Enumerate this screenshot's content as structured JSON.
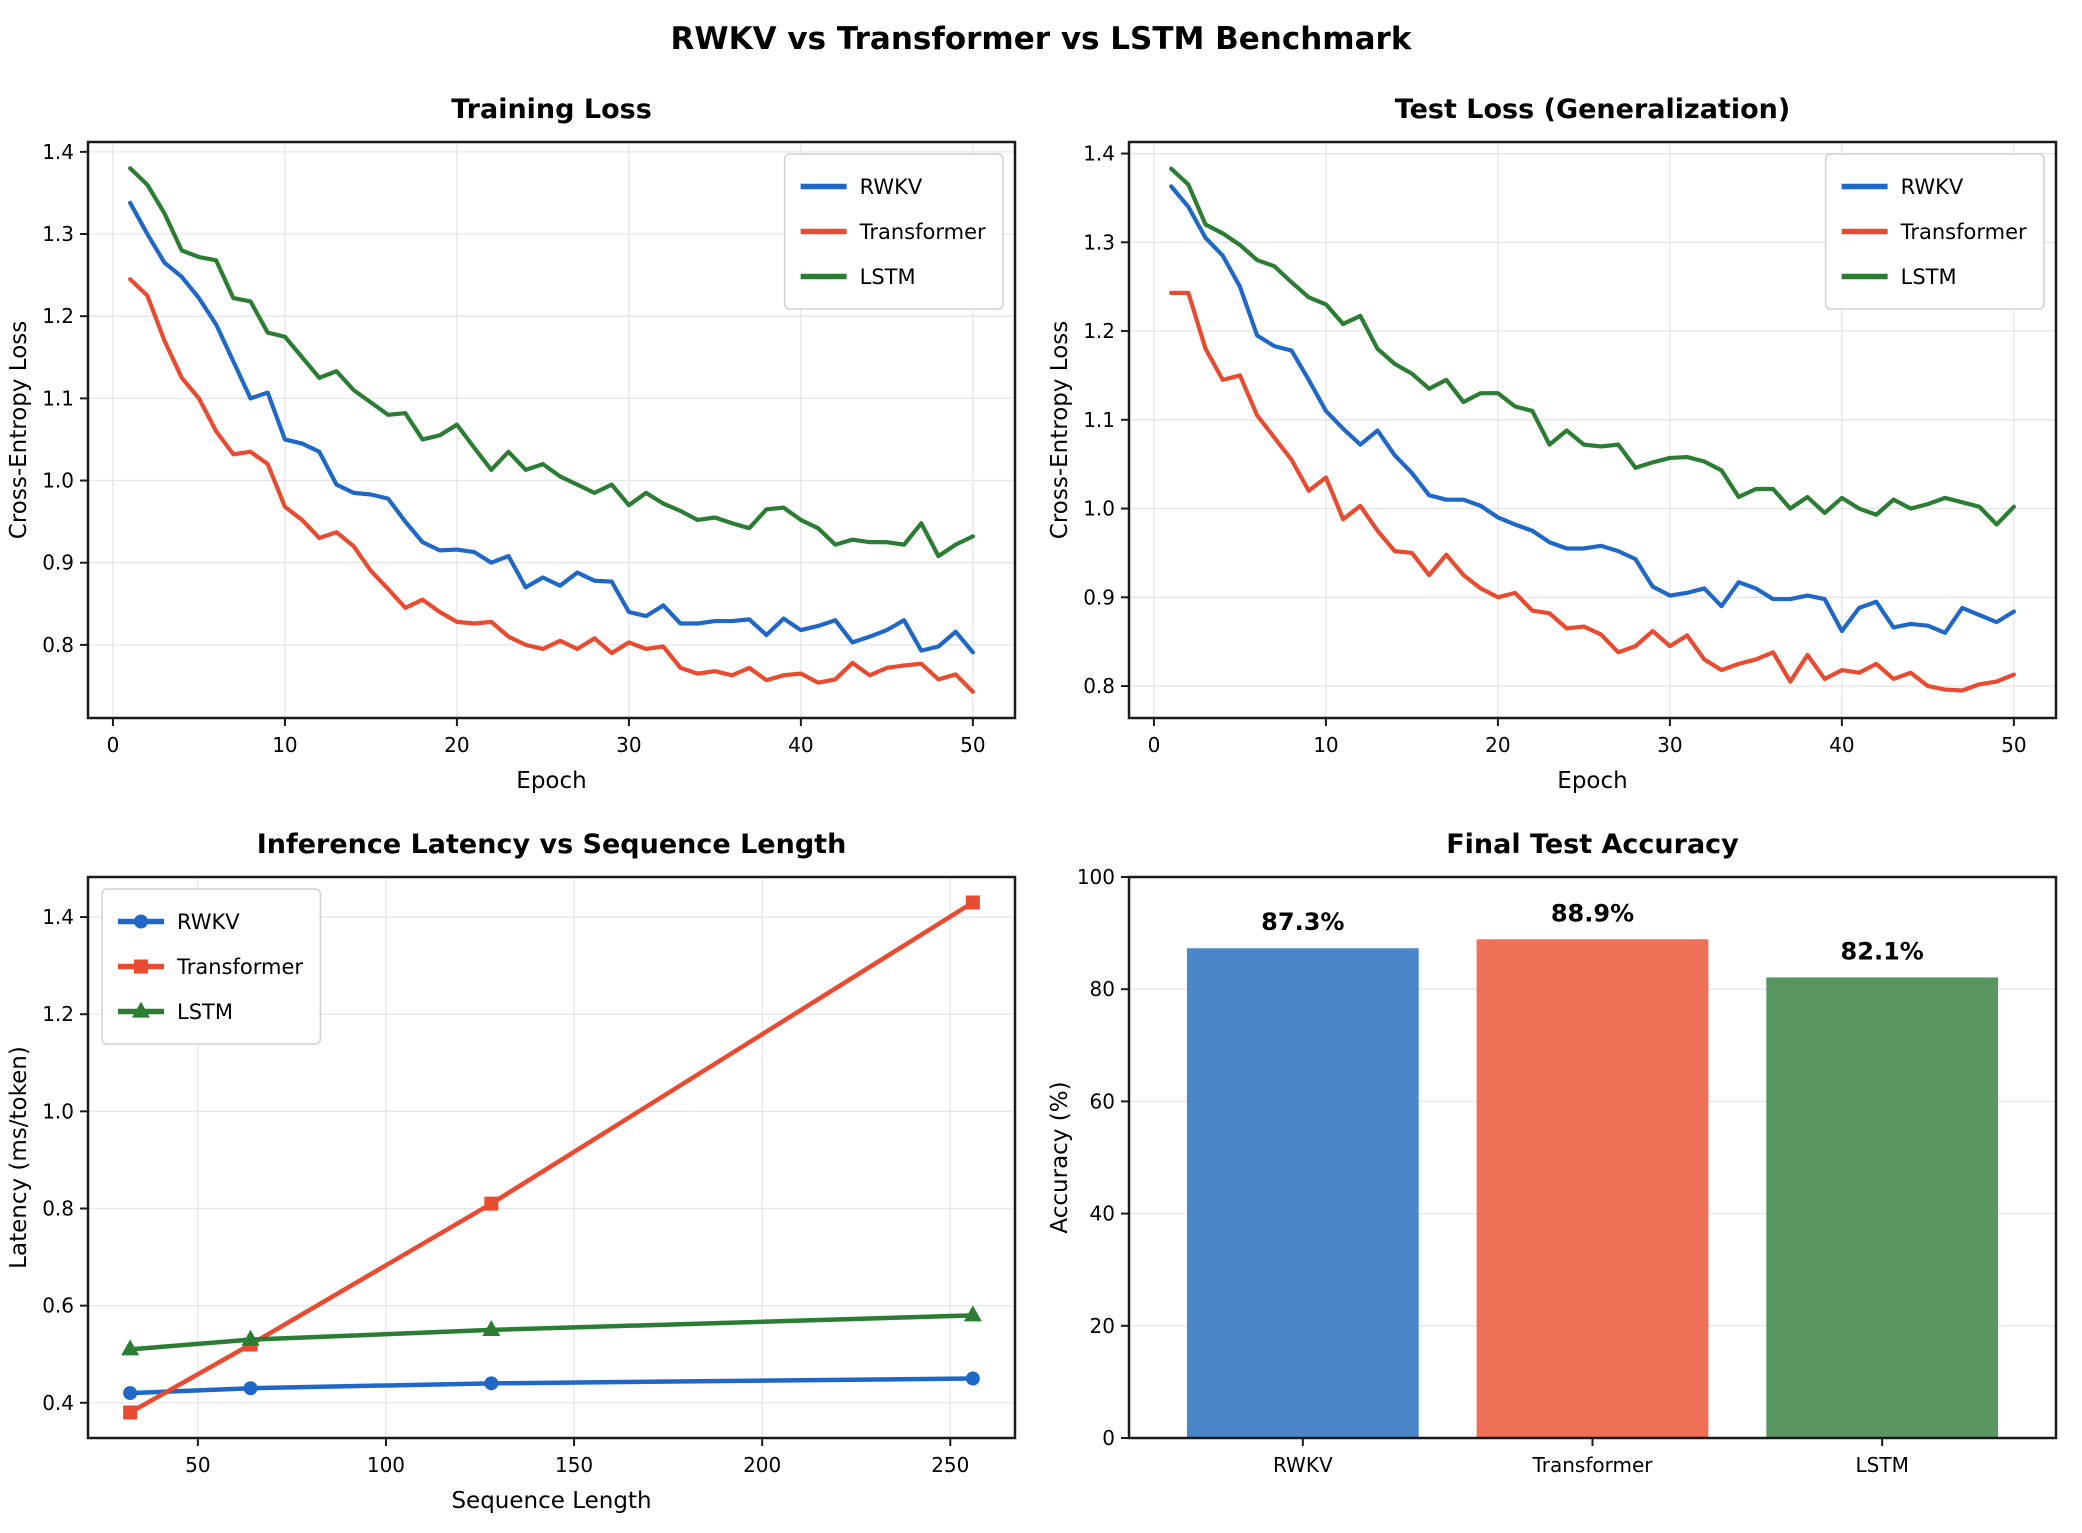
{
  "figure": {
    "title": "RWKV vs Transformer vs LSTM Benchmark"
  },
  "palette": {
    "rwkv_line": "#2068c8",
    "transformer_line": "#e84b30",
    "lstm_line": "#2a7d33",
    "rwkv_bar": "#4a86c8",
    "transformer_bar": "#ef7057",
    "lstm_bar": "#5a9660",
    "grid": "#e6e6e6",
    "spine": "#1a1a1a"
  },
  "chart_data": [
    {
      "id": "training-loss",
      "type": "line",
      "title": "Training Loss",
      "xlabel": "Epoch",
      "ylabel": "Cross-Entropy Loss",
      "xlim": [
        -1.45,
        52.45
      ],
      "ylim": [
        0.711,
        1.412
      ],
      "xticks": [
        0,
        10,
        20,
        30,
        40,
        50
      ],
      "xtick_labels": [
        "0",
        "10",
        "20",
        "30",
        "40",
        "50"
      ],
      "yticks": [
        0.8,
        0.9,
        1.0,
        1.1,
        1.2,
        1.3,
        1.4
      ],
      "ytick_labels": [
        "0.8",
        "0.9",
        "1.0",
        "1.1",
        "1.2",
        "1.3",
        "1.4"
      ],
      "grid": "both",
      "line_width": 4.2,
      "legend": {
        "position": "upper-right",
        "show_markers": false
      },
      "x": [
        1,
        2,
        3,
        4,
        5,
        6,
        7,
        8,
        9,
        10,
        11,
        12,
        13,
        14,
        15,
        16,
        17,
        18,
        19,
        20,
        21,
        22,
        23,
        24,
        25,
        26,
        27,
        28,
        29,
        30,
        31,
        32,
        33,
        34,
        35,
        36,
        37,
        38,
        39,
        40,
        41,
        42,
        43,
        44,
        45,
        46,
        47,
        48,
        49,
        50
      ],
      "series": [
        {
          "name": "RWKV",
          "color": "#2068c8",
          "marker": null,
          "values": [
            1.338,
            1.3,
            1.265,
            1.248,
            1.222,
            1.19,
            1.145,
            1.1,
            1.107,
            1.05,
            1.045,
            1.035,
            0.995,
            0.985,
            0.983,
            0.978,
            0.95,
            0.925,
            0.915,
            0.916,
            0.913,
            0.9,
            0.908,
            0.87,
            0.882,
            0.872,
            0.888,
            0.878,
            0.877,
            0.84,
            0.835,
            0.848,
            0.826,
            0.826,
            0.829,
            0.829,
            0.831,
            0.812,
            0.832,
            0.818,
            0.823,
            0.83,
            0.803,
            0.81,
            0.818,
            0.83,
            0.793,
            0.798,
            0.816,
            0.791
          ]
        },
        {
          "name": "Transformer",
          "color": "#e84b30",
          "marker": null,
          "values": [
            1.245,
            1.225,
            1.17,
            1.125,
            1.1,
            1.06,
            1.032,
            1.035,
            1.02,
            0.968,
            0.952,
            0.93,
            0.937,
            0.92,
            0.89,
            0.868,
            0.845,
            0.855,
            0.84,
            0.828,
            0.826,
            0.828,
            0.81,
            0.8,
            0.795,
            0.805,
            0.795,
            0.808,
            0.79,
            0.803,
            0.795,
            0.798,
            0.772,
            0.765,
            0.768,
            0.763,
            0.772,
            0.757,
            0.763,
            0.765,
            0.754,
            0.758,
            0.778,
            0.763,
            0.772,
            0.775,
            0.777,
            0.758,
            0.764,
            0.743
          ]
        },
        {
          "name": "LSTM",
          "color": "#2a7d33",
          "marker": null,
          "values": [
            1.38,
            1.36,
            1.325,
            1.28,
            1.272,
            1.268,
            1.222,
            1.218,
            1.18,
            1.175,
            1.15,
            1.125,
            1.133,
            1.11,
            1.095,
            1.08,
            1.082,
            1.05,
            1.055,
            1.068,
            1.04,
            1.013,
            1.035,
            1.013,
            1.02,
            1.005,
            0.995,
            0.985,
            0.995,
            0.97,
            0.985,
            0.972,
            0.963,
            0.952,
            0.955,
            0.948,
            0.942,
            0.965,
            0.967,
            0.952,
            0.942,
            0.922,
            0.928,
            0.925,
            0.925,
            0.922,
            0.948,
            0.908,
            0.922,
            0.932
          ]
        }
      ]
    },
    {
      "id": "test-loss",
      "type": "line",
      "title": "Test Loss (Generalization)",
      "xlabel": "Epoch",
      "ylabel": "Cross-Entropy Loss",
      "xlim": [
        -1.45,
        52.45
      ],
      "ylim": [
        0.764,
        1.413
      ],
      "xticks": [
        0,
        10,
        20,
        30,
        40,
        50
      ],
      "xtick_labels": [
        "0",
        "10",
        "20",
        "30",
        "40",
        "50"
      ],
      "yticks": [
        0.8,
        0.9,
        1.0,
        1.1,
        1.2,
        1.3,
        1.4
      ],
      "ytick_labels": [
        "0.8",
        "0.9",
        "1.0",
        "1.1",
        "1.2",
        "1.3",
        "1.4"
      ],
      "grid": "both",
      "line_width": 4.2,
      "legend": {
        "position": "upper-right",
        "show_markers": false
      },
      "x": [
        1,
        2,
        3,
        4,
        5,
        6,
        7,
        8,
        9,
        10,
        11,
        12,
        13,
        14,
        15,
        16,
        17,
        18,
        19,
        20,
        21,
        22,
        23,
        24,
        25,
        26,
        27,
        28,
        29,
        30,
        31,
        32,
        33,
        34,
        35,
        36,
        37,
        38,
        39,
        40,
        41,
        42,
        43,
        44,
        45,
        46,
        47,
        48,
        49,
        50
      ],
      "series": [
        {
          "name": "RWKV",
          "color": "#2068c8",
          "marker": null,
          "values": [
            1.363,
            1.34,
            1.305,
            1.285,
            1.25,
            1.195,
            1.183,
            1.178,
            1.145,
            1.11,
            1.09,
            1.072,
            1.088,
            1.06,
            1.04,
            1.015,
            1.01,
            1.01,
            1.003,
            0.99,
            0.982,
            0.975,
            0.962,
            0.955,
            0.955,
            0.958,
            0.952,
            0.943,
            0.912,
            0.902,
            0.905,
            0.91,
            0.89,
            0.917,
            0.91,
            0.898,
            0.898,
            0.902,
            0.898,
            0.862,
            0.888,
            0.895,
            0.866,
            0.87,
            0.868,
            0.86,
            0.888,
            0.88,
            0.872,
            0.884
          ]
        },
        {
          "name": "Transformer",
          "color": "#e84b30",
          "marker": null,
          "values": [
            1.243,
            1.243,
            1.18,
            1.145,
            1.15,
            1.105,
            1.08,
            1.055,
            1.02,
            1.035,
            0.988,
            1.003,
            0.975,
            0.952,
            0.95,
            0.925,
            0.948,
            0.925,
            0.91,
            0.9,
            0.905,
            0.885,
            0.882,
            0.865,
            0.867,
            0.858,
            0.838,
            0.845,
            0.862,
            0.845,
            0.857,
            0.83,
            0.818,
            0.825,
            0.83,
            0.838,
            0.805,
            0.835,
            0.808,
            0.818,
            0.815,
            0.825,
            0.808,
            0.815,
            0.8,
            0.796,
            0.795,
            0.802,
            0.805,
            0.813
          ]
        },
        {
          "name": "LSTM",
          "color": "#2a7d33",
          "marker": null,
          "values": [
            1.383,
            1.365,
            1.32,
            1.31,
            1.297,
            1.28,
            1.273,
            1.255,
            1.238,
            1.23,
            1.208,
            1.217,
            1.18,
            1.163,
            1.152,
            1.135,
            1.145,
            1.12,
            1.13,
            1.13,
            1.115,
            1.11,
            1.072,
            1.088,
            1.072,
            1.07,
            1.072,
            1.046,
            1.052,
            1.057,
            1.058,
            1.053,
            1.043,
            1.013,
            1.022,
            1.022,
            1.0,
            1.013,
            0.995,
            1.012,
            1.0,
            0.993,
            1.01,
            1.0,
            1.005,
            1.012,
            1.007,
            1.002,
            0.982,
            1.002
          ]
        }
      ]
    },
    {
      "id": "inference-latency",
      "type": "line",
      "title": "Inference Latency vs Sequence Length",
      "xlabel": "Sequence Length",
      "ylabel": "Latency (ms/token)",
      "xlim": [
        20.8,
        267.2
      ],
      "ylim": [
        0.3275,
        1.4825
      ],
      "xticks": [
        50,
        100,
        150,
        200,
        250
      ],
      "xtick_labels": [
        "50",
        "100",
        "150",
        "200",
        "250"
      ],
      "yticks": [
        0.4,
        0.6,
        0.8,
        1.0,
        1.2,
        1.4
      ],
      "ytick_labels": [
        "0.4",
        "0.6",
        "0.8",
        "1.0",
        "1.2",
        "1.4"
      ],
      "grid": "both",
      "line_width": 4.5,
      "legend": {
        "position": "upper-left",
        "show_markers": true
      },
      "x": [
        32,
        64,
        128,
        256
      ],
      "series": [
        {
          "name": "RWKV",
          "color": "#2068c8",
          "marker": "circle",
          "values": [
            0.42,
            0.43,
            0.44,
            0.45
          ]
        },
        {
          "name": "Transformer",
          "color": "#e84b30",
          "marker": "square",
          "values": [
            0.38,
            0.52,
            0.81,
            1.43
          ]
        },
        {
          "name": "LSTM",
          "color": "#2a7d33",
          "marker": "triangle",
          "values": [
            0.51,
            0.53,
            0.55,
            0.58
          ]
        }
      ]
    },
    {
      "id": "final-accuracy",
      "type": "bar",
      "title": "Final Test Accuracy",
      "xlabel": "",
      "ylabel": "Accuracy (%)",
      "xlim": [
        -0.6,
        2.6
      ],
      "ylim": [
        0,
        100
      ],
      "yticks": [
        0,
        20,
        40,
        60,
        80,
        100
      ],
      "ytick_labels": [
        "0",
        "20",
        "40",
        "60",
        "80",
        "100"
      ],
      "grid": "y",
      "categories": [
        "RWKV",
        "Transformer",
        "LSTM"
      ],
      "values": [
        87.3,
        88.9,
        82.1
      ],
      "value_labels": [
        "87.3%",
        "88.9%",
        "82.1%"
      ],
      "bar_colors": [
        "#4a86c8",
        "#ef7057",
        "#5a9660"
      ],
      "bar_width": 0.8
    }
  ]
}
